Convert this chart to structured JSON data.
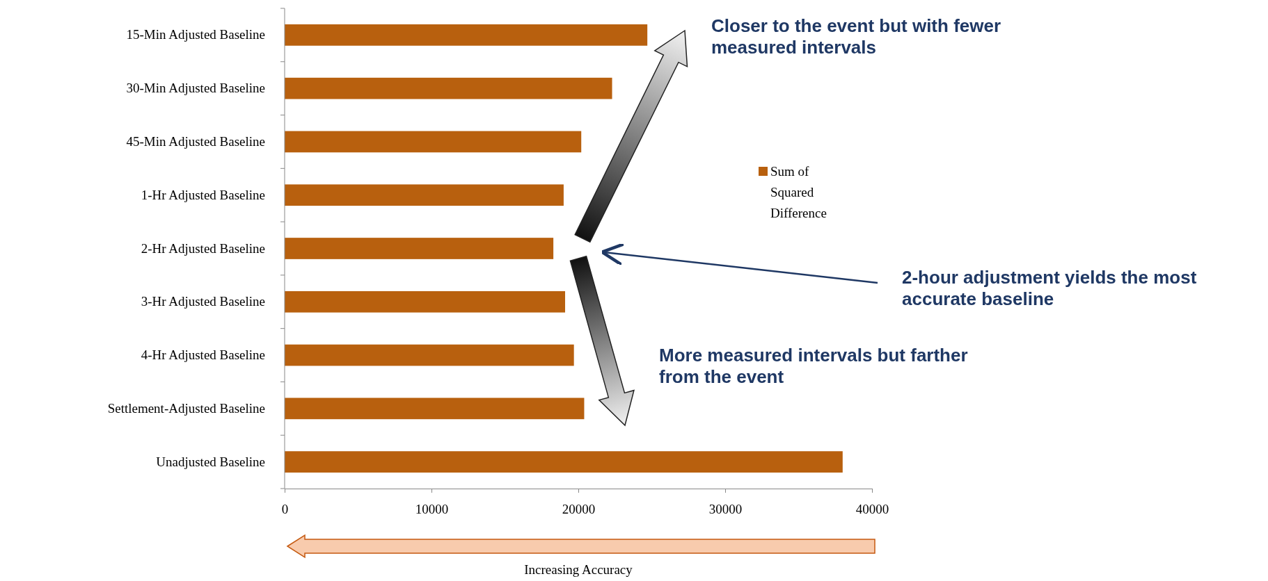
{
  "chart_data": {
    "type": "bar",
    "orientation": "horizontal",
    "categories": [
      "15-Min Adjusted Baseline",
      "30-Min Adjusted Baseline",
      "45-Min Adjusted Baseline",
      "1-Hr Adjusted Baseline",
      "2-Hr Adjusted Baseline",
      "3-Hr Adjusted Baseline",
      "4-Hr Adjusted Baseline",
      "Settlement-Adjusted Baseline",
      "Unadjusted Baseline"
    ],
    "series": [
      {
        "name": "Sum of Squared Difference",
        "color": "#b8600e",
        "values": [
          24700,
          22300,
          20200,
          19000,
          18300,
          19100,
          19700,
          20400,
          38000
        ]
      }
    ],
    "xlim": [
      0,
      40000
    ],
    "xticks": [
      0,
      10000,
      20000,
      30000,
      40000
    ],
    "xlabel": "Increasing Accuracy",
    "legend": "right",
    "annotations": [
      "Closer to the event but with fewer measured intervals",
      "2-hour adjustment yields the most accurate baseline",
      "More measured intervals but farther from the event"
    ]
  }
}
